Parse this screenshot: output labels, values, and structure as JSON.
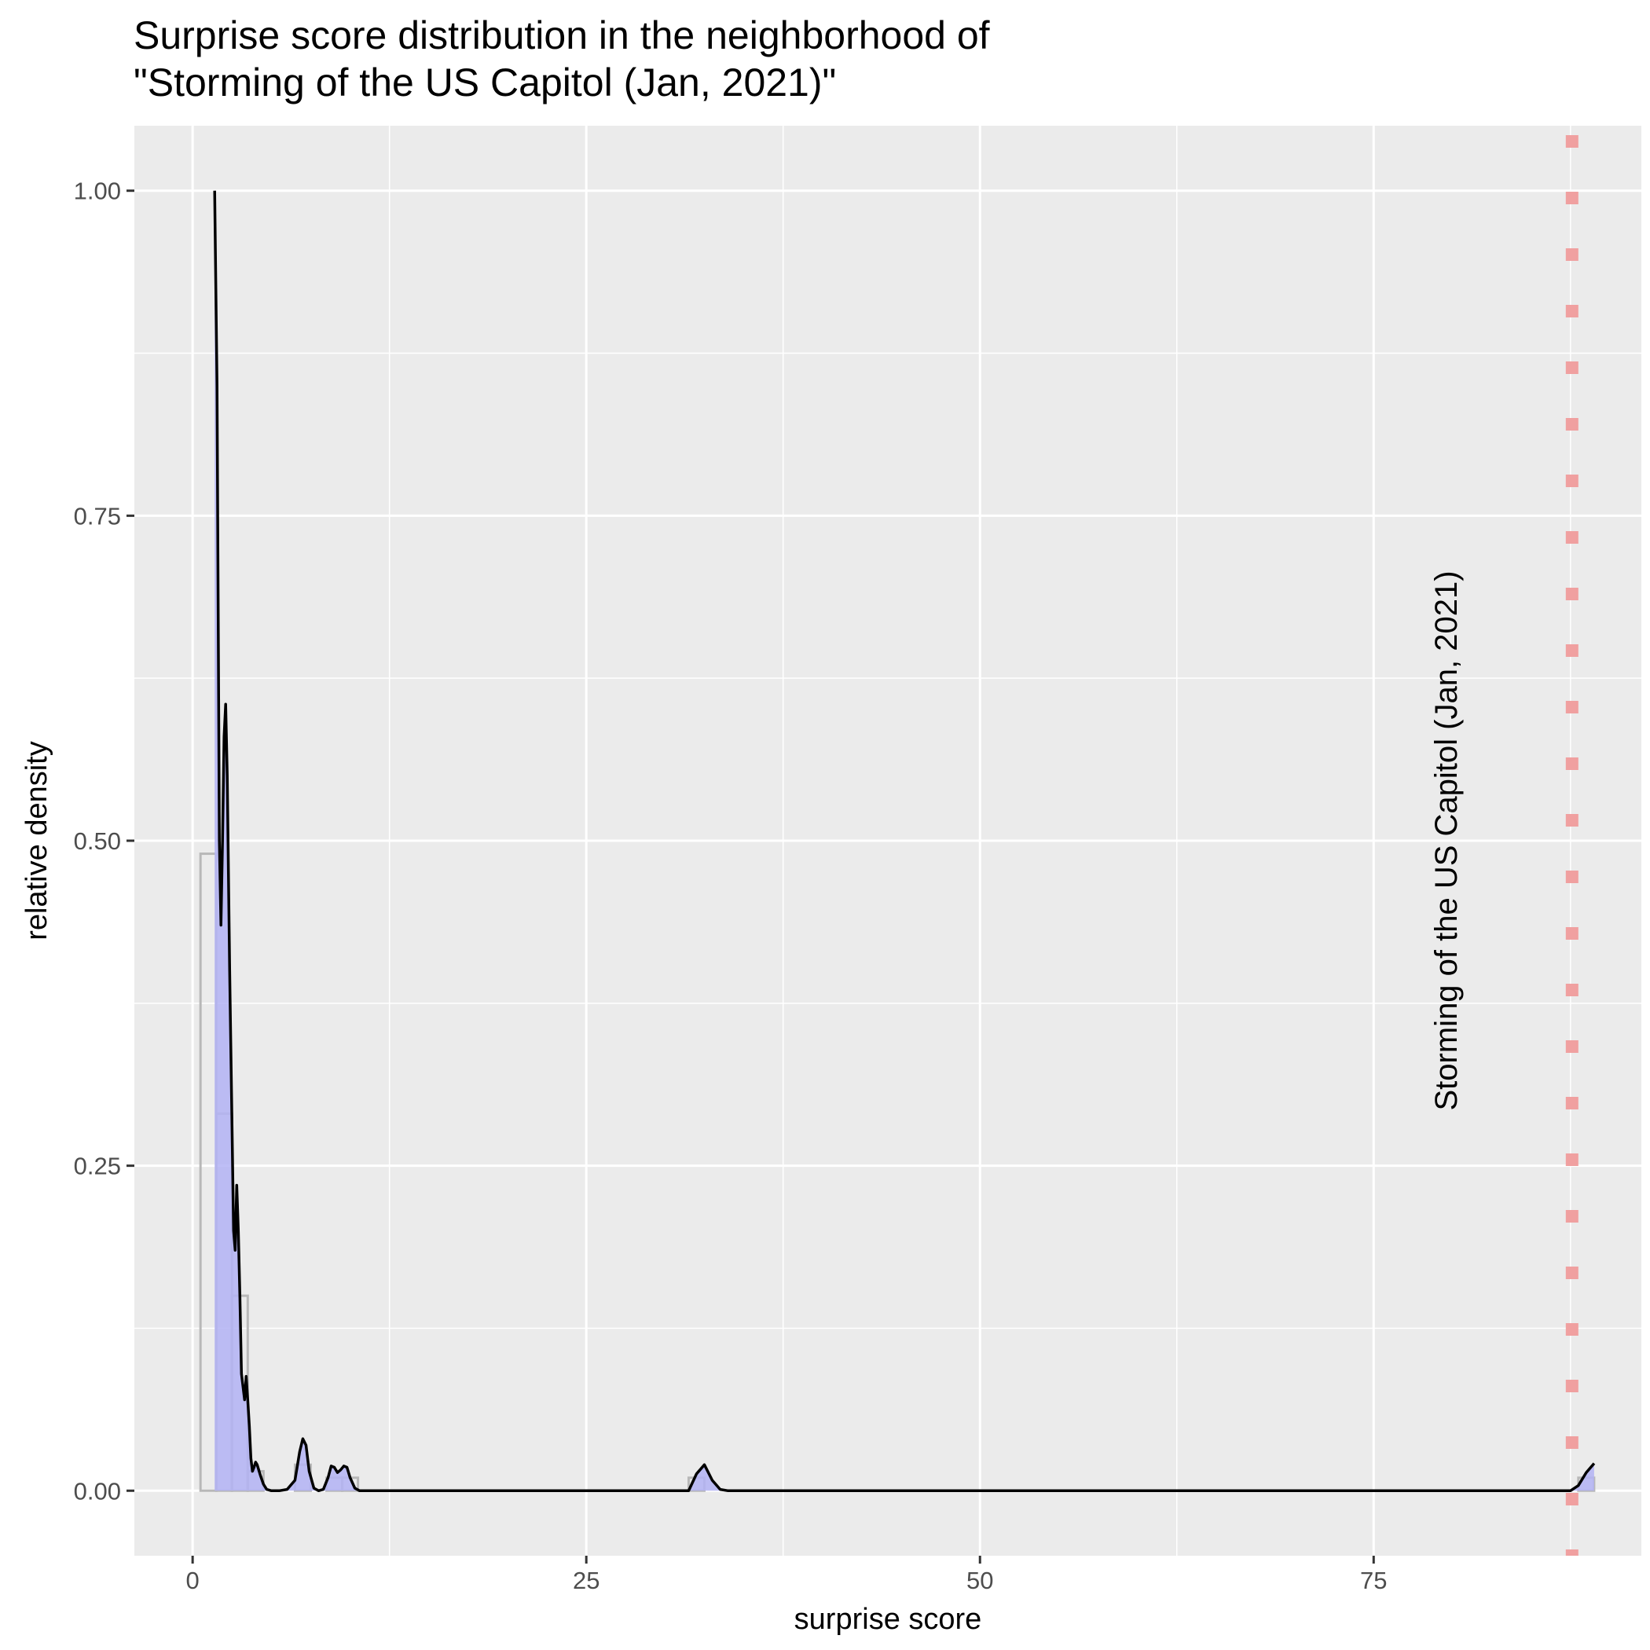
{
  "chart_data": {
    "type": "histogram",
    "title": [
      "Surprise score distribution in the neighborhood of",
      "\"Storming of the US Capitol (Jan, 2021)\""
    ],
    "xlabel": "surprise score",
    "ylabel": "relative density",
    "xlim": [
      -3.7,
      92.0
    ],
    "ylim": [
      -0.05,
      1.05
    ],
    "x_ticks": [
      {
        "value": 0,
        "label": "0"
      },
      {
        "value": 25,
        "label": "25"
      },
      {
        "value": 50,
        "label": "50"
      },
      {
        "value": 75,
        "label": "75"
      }
    ],
    "y_ticks": [
      {
        "value": 0,
        "label": "0.00"
      },
      {
        "value": 0.25,
        "label": "0.25"
      },
      {
        "value": 0.5,
        "label": "0.50"
      },
      {
        "value": 0.75,
        "label": "0.75"
      },
      {
        "value": 1.0,
        "label": "1.00"
      }
    ],
    "histogram_bins": [
      {
        "x0": 0.5,
        "x1": 1.5,
        "y": 0.49
      },
      {
        "x0": 1.5,
        "x1": 2.5,
        "y": 0.29
      },
      {
        "x0": 2.5,
        "x1": 3.5,
        "y": 0.15
      },
      {
        "x0": 3.5,
        "x1": 4.5,
        "y": 0.015
      },
      {
        "x0": 6.5,
        "x1": 7.5,
        "y": 0.02
      },
      {
        "x0": 8.5,
        "x1": 9.5,
        "y": 0.01
      },
      {
        "x0": 9.5,
        "x1": 10.5,
        "y": 0.01
      },
      {
        "x0": 31.5,
        "x1": 32.5,
        "y": 0.01
      },
      {
        "x0": 88.0,
        "x1": 89.0,
        "y": 0.01
      }
    ],
    "density_curve": {
      "x": [
        1.4,
        1.55,
        1.7,
        1.8,
        1.9,
        2.0,
        2.1,
        2.2,
        2.35,
        2.5,
        2.6,
        2.7,
        2.8,
        2.9,
        3.0,
        3.1,
        3.2,
        3.3,
        3.4,
        3.5,
        3.6,
        3.7,
        3.8,
        3.9,
        4.0,
        4.1,
        4.3,
        4.5,
        4.7,
        5.0,
        5.5,
        6.0,
        6.5,
        6.8,
        7.0,
        7.2,
        7.4,
        7.7,
        8.0,
        8.3,
        8.6,
        8.8,
        9.0,
        9.2,
        9.4,
        9.6,
        9.8,
        10.0,
        10.3,
        10.6,
        11.0,
        20.0,
        31.5,
        32.0,
        32.5,
        33.0,
        33.5,
        34.0,
        50.0,
        87.5,
        88.0,
        88.5,
        89.0
      ],
      "y": [
        1.0,
        0.85,
        0.5,
        0.435,
        0.5,
        0.58,
        0.605,
        0.55,
        0.4,
        0.28,
        0.2,
        0.185,
        0.235,
        0.2,
        0.15,
        0.09,
        0.08,
        0.07,
        0.088,
        0.07,
        0.05,
        0.025,
        0.015,
        0.018,
        0.022,
        0.02,
        0.012,
        0.005,
        0.001,
        0.0,
        0.0,
        0.001,
        0.008,
        0.03,
        0.04,
        0.035,
        0.015,
        0.002,
        0.0,
        0.001,
        0.01,
        0.019,
        0.018,
        0.014,
        0.016,
        0.019,
        0.018,
        0.01,
        0.002,
        0.0,
        0.0,
        0.0,
        0.0,
        0.013,
        0.02,
        0.008,
        0.001,
        0.0,
        0.0,
        0.0,
        0.004,
        0.014,
        0.021
      ]
    },
    "marker": {
      "x": 87.6,
      "label": "Storming of the US Capitol (Jan, 2021)",
      "color": "#f0a0a0"
    },
    "colors": {
      "panel_background": "#ebebeb",
      "grid": "#ffffff",
      "hist_fill": "#b3b3f5",
      "hist_outline": "#b8b8b8",
      "curve": "#000000"
    }
  }
}
